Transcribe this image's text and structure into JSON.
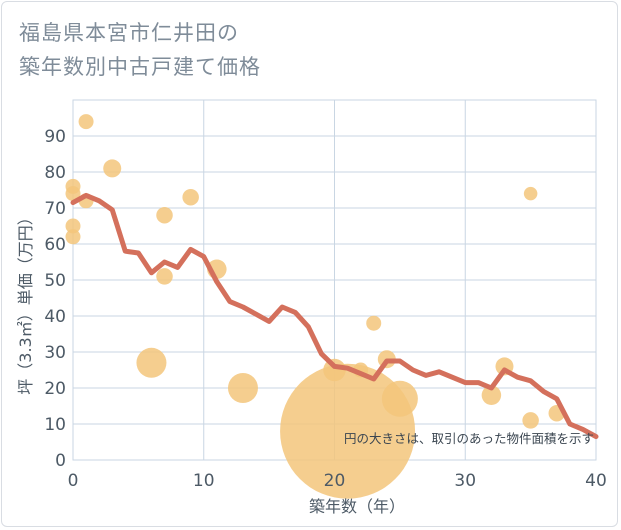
{
  "title_line1": "福島県本宮市仁井田の",
  "title_line2": "築年数別中古戸建て価格",
  "chart_data": {
    "type": "scatter+line",
    "xlabel": "築年数（年）",
    "ylabel": "坪（3.3㎡）単価（万円）",
    "xlim": [
      0,
      40
    ],
    "ylim": [
      0,
      100
    ],
    "x_ticks": [
      "0",
      "10",
      "20",
      "30",
      "40"
    ],
    "y_ticks": [
      "0",
      "10",
      "20",
      "30",
      "40",
      "50",
      "60",
      "70",
      "80",
      "90"
    ],
    "note": "円の大きさは、取引のあった物件面積を示す",
    "colors": {
      "bubble": "#f3c57b",
      "line": "#d4705c",
      "grid": "#c9d6e3"
    },
    "bubbles": [
      {
        "x": 0,
        "y": 76,
        "s": 1
      },
      {
        "x": 0,
        "y": 74,
        "s": 1
      },
      {
        "x": 0,
        "y": 65,
        "s": 1
      },
      {
        "x": 0,
        "y": 62,
        "s": 1
      },
      {
        "x": 1,
        "y": 94,
        "s": 1
      },
      {
        "x": 1,
        "y": 72,
        "s": 1
      },
      {
        "x": 3,
        "y": 81,
        "s": 1.2
      },
      {
        "x": 6,
        "y": 27,
        "s": 2
      },
      {
        "x": 7,
        "y": 68,
        "s": 1.1
      },
      {
        "x": 7,
        "y": 51,
        "s": 1.1
      },
      {
        "x": 9,
        "y": 73,
        "s": 1.1
      },
      {
        "x": 11,
        "y": 53,
        "s": 1.3
      },
      {
        "x": 13,
        "y": 20,
        "s": 2
      },
      {
        "x": 20,
        "y": 25,
        "s": 1.5
      },
      {
        "x": 21,
        "y": 8,
        "s": 9
      },
      {
        "x": 22,
        "y": 25,
        "s": 1
      },
      {
        "x": 23,
        "y": 38,
        "s": 1
      },
      {
        "x": 24,
        "y": 28,
        "s": 1.2
      },
      {
        "x": 25,
        "y": 17,
        "s": 2.4
      },
      {
        "x": 32,
        "y": 18,
        "s": 1.3
      },
      {
        "x": 33,
        "y": 26,
        "s": 1.2
      },
      {
        "x": 35,
        "y": 74,
        "s": 0.9
      },
      {
        "x": 35,
        "y": 11,
        "s": 1.1
      },
      {
        "x": 37,
        "y": 13,
        "s": 1.1
      }
    ],
    "line": {
      "x": [
        0,
        1,
        2,
        3,
        4,
        5,
        6,
        7,
        8,
        9,
        10,
        11,
        12,
        13,
        14,
        15,
        16,
        17,
        18,
        19,
        20,
        21,
        22,
        23,
        24,
        25,
        26,
        27,
        28,
        29,
        30,
        31,
        32,
        33,
        34,
        35,
        36,
        37,
        38,
        39,
        40
      ],
      "y": [
        71.5,
        73.5,
        72,
        69.5,
        58,
        57.5,
        52,
        55,
        53.5,
        58.5,
        56.5,
        49.5,
        44,
        42.5,
        40.5,
        38.5,
        42.5,
        41,
        37,
        29.5,
        26,
        25.5,
        24,
        22.5,
        27.5,
        27.5,
        25,
        23.5,
        24.5,
        23,
        21.5,
        21.5,
        20,
        25,
        23,
        22,
        19,
        17,
        10,
        8.5,
        6.5
      ]
    }
  }
}
